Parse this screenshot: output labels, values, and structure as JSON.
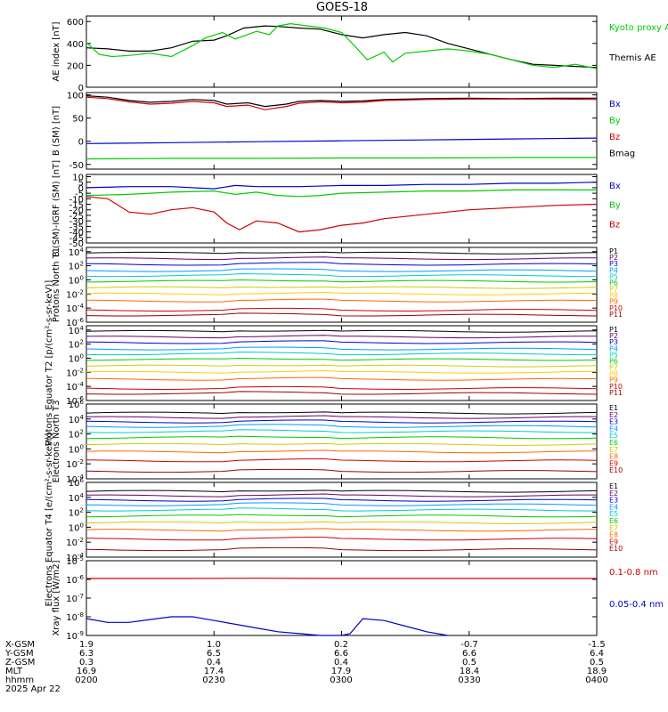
{
  "title": "GOES-18",
  "footer": {
    "rows": [
      {
        "label": "X-GSM",
        "values": [
          "1.9",
          "1.0",
          "0.2",
          "-0.7",
          "-1.5"
        ]
      },
      {
        "label": "Y-GSM",
        "values": [
          "6.3",
          "6.5",
          "6.6",
          "6.6",
          "6.4"
        ]
      },
      {
        "label": "Z-GSM",
        "values": [
          "0.3",
          "0.4",
          "0.4",
          "0.5",
          "0.5"
        ]
      },
      {
        "label": "MLT",
        "values": [
          "16.9",
          "17.4",
          "17.9",
          "18.4",
          "18.9"
        ]
      },
      {
        "label": "hhmm",
        "values": [
          "0200",
          "0230",
          "0300",
          "0330",
          "0400"
        ]
      }
    ],
    "date": "2025 Apr 22"
  },
  "chart_data": [
    {
      "type": "line",
      "ylabel": "AE index [nT]",
      "ylim": [
        0,
        650
      ],
      "yticks": [
        "0",
        "200",
        "400",
        "600"
      ],
      "x_hhmm": [
        "0200",
        "0230",
        "0300",
        "0330",
        "0400"
      ],
      "legend": [
        {
          "text": "Kyoto proxy AE",
          "color": "#00cc00"
        },
        {
          "text": "Themis AE",
          "color": "#000000"
        }
      ],
      "series": [
        {
          "name": "Themis AE",
          "color": "#000000",
          "x": [
            0,
            5,
            10,
            15,
            20,
            25,
            30,
            33,
            37,
            42,
            45,
            50,
            55,
            60,
            65,
            70,
            75,
            80,
            85,
            90,
            95,
            100,
            105,
            110,
            115,
            120
          ],
          "values": [
            360,
            350,
            330,
            330,
            360,
            420,
            430,
            470,
            540,
            560,
            555,
            540,
            530,
            480,
            450,
            480,
            500,
            470,
            400,
            350,
            300,
            250,
            210,
            200,
            190,
            180
          ]
        },
        {
          "name": "Kyoto proxy AE",
          "color": "#00cc00",
          "x": [
            0,
            3,
            6,
            10,
            15,
            20,
            25,
            28,
            32,
            35,
            40,
            43,
            45,
            48,
            52,
            56,
            60,
            63,
            66,
            70,
            72,
            75,
            80,
            85,
            90,
            95,
            100,
            105,
            110,
            115,
            120
          ],
          "values": [
            410,
            300,
            280,
            290,
            310,
            280,
            380,
            450,
            500,
            440,
            510,
            480,
            560,
            580,
            560,
            540,
            500,
            380,
            250,
            320,
            230,
            310,
            330,
            350,
            330,
            300,
            250,
            200,
            180,
            210,
            170
          ]
        }
      ]
    },
    {
      "type": "line",
      "ylabel": "B (SM) [nT]",
      "ylim": [
        -60,
        105
      ],
      "yticks": [
        "100",
        "50",
        "0",
        "-50"
      ],
      "legend": [
        {
          "text": "Bx",
          "color": "#0000cc"
        },
        {
          "text": "By",
          "color": "#00cc00"
        },
        {
          "text": "Bz",
          "color": "#cc0000"
        },
        {
          "text": "Bmag",
          "color": "#000000"
        }
      ],
      "series": [
        {
          "name": "Bmag",
          "color": "#000000",
          "x": [
            0,
            5,
            10,
            15,
            20,
            25,
            30,
            33,
            38,
            42,
            47,
            50,
            55,
            60,
            65,
            70,
            80,
            90,
            100,
            110,
            120
          ],
          "values": [
            98,
            95,
            88,
            84,
            86,
            90,
            88,
            80,
            83,
            75,
            80,
            86,
            88,
            86,
            87,
            90,
            92,
            93,
            92,
            93,
            93
          ]
        },
        {
          "name": "Bz",
          "color": "#cc0000",
          "x": [
            0,
            5,
            10,
            15,
            20,
            25,
            30,
            33,
            38,
            42,
            47,
            50,
            55,
            60,
            65,
            70,
            80,
            90,
            100,
            110,
            120
          ],
          "values": [
            95,
            92,
            85,
            80,
            82,
            86,
            83,
            75,
            78,
            68,
            75,
            82,
            85,
            83,
            84,
            88,
            90,
            91,
            91,
            91,
            90
          ]
        },
        {
          "name": "Bx",
          "color": "#0000cc",
          "x": [
            0,
            20,
            40,
            60,
            80,
            100,
            120
          ],
          "values": [
            -5,
            -3,
            -1,
            1,
            3,
            5,
            7
          ]
        },
        {
          "name": "By",
          "color": "#00cc00",
          "x": [
            0,
            20,
            40,
            60,
            80,
            100,
            120
          ],
          "values": [
            -38,
            -37,
            -37,
            -36,
            -36,
            -35,
            -35
          ]
        }
      ]
    },
    {
      "type": "line",
      "ylabel": "B (SM)-IGRF (SM) [nT]",
      "ylim": [
        -50,
        12
      ],
      "yticks": [
        "10",
        "5",
        "0",
        "-5",
        "-10",
        "-15",
        "-20",
        "-25",
        "-30",
        "-35",
        "-40",
        "-45",
        "-50"
      ],
      "legend": [
        {
          "text": "Bx",
          "color": "#0000cc"
        },
        {
          "text": "By",
          "color": "#00cc00"
        },
        {
          "text": "Bz",
          "color": "#cc0000"
        }
      ],
      "series": [
        {
          "name": "Bx",
          "color": "#0000cc",
          "x": [
            0,
            10,
            20,
            30,
            35,
            40,
            50,
            60,
            70,
            80,
            90,
            100,
            110,
            120
          ],
          "values": [
            0,
            1,
            1,
            -1,
            2,
            1,
            1,
            2,
            2,
            3,
            3,
            4,
            4,
            5
          ]
        },
        {
          "name": "By",
          "color": "#00cc00",
          "x": [
            0,
            10,
            20,
            30,
            35,
            40,
            45,
            50,
            55,
            60,
            70,
            80,
            90,
            100,
            110,
            120
          ],
          "values": [
            -7,
            -6,
            -4,
            -3,
            -6,
            -4,
            -7,
            -8,
            -7,
            -5,
            -4,
            -3,
            -3,
            -2,
            -2,
            -2
          ]
        },
        {
          "name": "Bz",
          "color": "#cc0000",
          "x": [
            0,
            5,
            10,
            15,
            20,
            25,
            30,
            33,
            36,
            40,
            45,
            50,
            55,
            60,
            65,
            70,
            80,
            90,
            100,
            110,
            120
          ],
          "values": [
            -8,
            -10,
            -22,
            -24,
            -20,
            -18,
            -22,
            -32,
            -38,
            -30,
            -32,
            -40,
            -38,
            -34,
            -32,
            -28,
            -24,
            -20,
            -18,
            -16,
            -15
          ]
        }
      ]
    },
    {
      "type": "line",
      "log": true,
      "ylabel": "Protons North T1",
      "ylim_exp": [
        -6,
        4.6
      ],
      "yticks": [
        "10^4",
        "10^2",
        "10^0",
        "10^-2",
        "10^-4",
        "10^-6"
      ],
      "legend": [
        {
          "text": "P1",
          "color": "#000000"
        },
        {
          "text": "P2",
          "color": "#660066"
        },
        {
          "text": "P3",
          "color": "#0000cc"
        },
        {
          "text": "P4",
          "color": "#0099ff"
        },
        {
          "text": "P5",
          "color": "#00cccc"
        },
        {
          "text": "P6",
          "color": "#00cc00"
        },
        {
          "text": "P7",
          "color": "#cccc00"
        },
        {
          "text": "P8",
          "color": "#ffcc00"
        },
        {
          "text": "P9",
          "color": "#ff6600"
        },
        {
          "text": "P10",
          "color": "#cc0000"
        },
        {
          "text": "P11",
          "color": "#990000"
        }
      ],
      "series_exp": [
        3.8,
        3.0,
        2.2,
        1.3,
        0.6,
        -0.2,
        -1.1,
        -2.0,
        -3.0,
        -4.3,
        -5.0
      ]
    },
    {
      "type": "line",
      "log": true,
      "ylabel": "Protons Equator T2 [p/(cm²-s-sr-keV)]",
      "ylim_exp": [
        -6,
        4.6
      ],
      "yticks": [
        "10^4",
        "10^2",
        "10^0",
        "10^-2",
        "10^-4",
        "10^-6"
      ],
      "legend": [
        {
          "text": "P1",
          "color": "#000000"
        },
        {
          "text": "P2",
          "color": "#660066"
        },
        {
          "text": "P3",
          "color": "#0000cc"
        },
        {
          "text": "P4",
          "color": "#0099ff"
        },
        {
          "text": "P5",
          "color": "#00cccc"
        },
        {
          "text": "P6",
          "color": "#00cc00"
        },
        {
          "text": "P7",
          "color": "#cccc00"
        },
        {
          "text": "P8",
          "color": "#ffcc00"
        },
        {
          "text": "P9",
          "color": "#ff6600"
        },
        {
          "text": "P10",
          "color": "#cc0000"
        },
        {
          "text": "P11",
          "color": "#990000"
        }
      ],
      "series_exp": [
        3.8,
        3.0,
        2.2,
        1.3,
        0.6,
        -0.2,
        -1.1,
        -2.0,
        -3.0,
        -4.3,
        -5.0
      ]
    },
    {
      "type": "line",
      "log": true,
      "ylabel": "Electrons North T3",
      "ylim_exp": [
        -4,
        6
      ],
      "yticks": [
        "10^6",
        "10^4",
        "10^2",
        "10^0",
        "10^-2",
        "10^-4"
      ],
      "legend": [
        {
          "text": "E1",
          "color": "#000000"
        },
        {
          "text": "E2",
          "color": "#660066"
        },
        {
          "text": "E3",
          "color": "#0000cc"
        },
        {
          "text": "E4",
          "color": "#0099ff"
        },
        {
          "text": "E5",
          "color": "#00cccc"
        },
        {
          "text": "E6",
          "color": "#00cc00"
        },
        {
          "text": "E7",
          "color": "#cccc00"
        },
        {
          "text": "E8",
          "color": "#ff6600"
        },
        {
          "text": "E9",
          "color": "#cc0000"
        },
        {
          "text": "E10",
          "color": "#990000"
        }
      ],
      "series_exp": [
        4.8,
        4.2,
        3.6,
        3.0,
        2.3,
        1.5,
        0.6,
        -0.4,
        -1.6,
        -3.0
      ]
    },
    {
      "type": "line",
      "log": true,
      "ylabel": "Electrons Equator T4 [e/(cm²-s-sr-keV)]",
      "ylim_exp": [
        -4,
        6
      ],
      "yticks": [
        "10^6",
        "10^4",
        "10^2",
        "10^0",
        "10^-2",
        "10^-4"
      ],
      "legend": [
        {
          "text": "E1",
          "color": "#000000"
        },
        {
          "text": "E2",
          "color": "#660066"
        },
        {
          "text": "E3",
          "color": "#0000cc"
        },
        {
          "text": "E4",
          "color": "#0099ff"
        },
        {
          "text": "E5",
          "color": "#00cccc"
        },
        {
          "text": "E6",
          "color": "#00cc00"
        },
        {
          "text": "E7",
          "color": "#cccc00"
        },
        {
          "text": "E8",
          "color": "#ff6600"
        },
        {
          "text": "E9",
          "color": "#cc0000"
        },
        {
          "text": "E10",
          "color": "#990000"
        }
      ],
      "series_exp": [
        4.8,
        4.2,
        3.6,
        3.0,
        2.3,
        1.5,
        0.6,
        -0.4,
        -1.6,
        -3.0
      ]
    },
    {
      "type": "line",
      "log": true,
      "ylabel": "Xray flux [W/m2]",
      "ylim_exp": [
        -9,
        -5
      ],
      "yticks": [
        "10^-5",
        "10^-6",
        "10^-7",
        "10^-8",
        "10^-9"
      ],
      "legend": [
        {
          "text": "0.1-0.8 nm",
          "color": "#cc0000"
        },
        {
          "text": "0.05-0.4 nm",
          "color": "#0000cc"
        }
      ],
      "series": [
        {
          "name": "0.1-0.8 nm",
          "color": "#cc0000",
          "x": [
            0,
            20,
            40,
            60,
            80,
            100,
            120
          ],
          "values": [
            -5.95,
            -5.95,
            -5.94,
            -5.95,
            -5.95,
            -5.95,
            -5.95
          ]
        },
        {
          "name": "0.05-0.4 nm",
          "color": "#0000cc",
          "x": [
            0,
            5,
            10,
            15,
            20,
            25,
            30,
            35,
            40,
            45,
            50,
            55,
            60,
            62,
            65,
            70,
            75,
            80,
            85
          ],
          "values": [
            -8.1,
            -8.3,
            -8.3,
            -8.15,
            -8.0,
            -8.0,
            -8.2,
            -8.4,
            -8.6,
            -8.8,
            -8.9,
            -9.0,
            -9.0,
            -8.9,
            -8.1,
            -8.2,
            -8.5,
            -8.8,
            -9.0
          ]
        }
      ]
    }
  ]
}
